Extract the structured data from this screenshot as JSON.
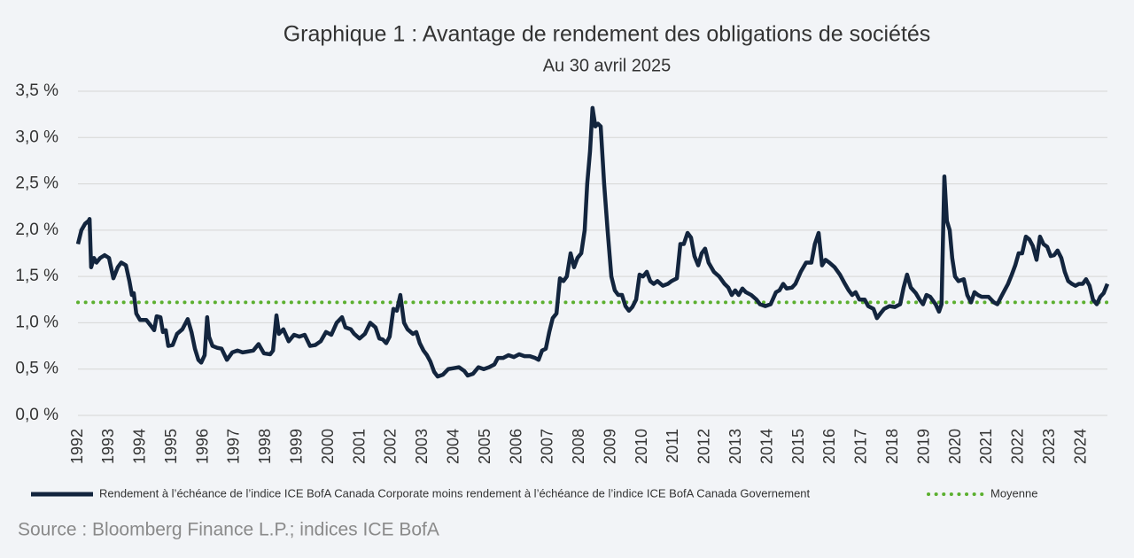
{
  "chart_data": {
    "type": "line",
    "title": "Graphique 1 : Avantage de rendement des obligations de sociétés",
    "subtitle": "Au 30 avril 2025",
    "source": "Source : Bloomberg Finance L.P.; indices ICE BofA",
    "xlim": [
      1992,
      2024.83
    ],
    "xticks": [
      1992,
      1993,
      1994,
      1995,
      1996,
      1997,
      1998,
      1999,
      2000,
      2001,
      2002,
      2003,
      2004,
      2005,
      2006,
      2007,
      2008,
      2009,
      2010,
      2011,
      2012,
      2013,
      2014,
      2015,
      2016,
      2017,
      2018,
      2019,
      2020,
      2021,
      2022,
      2023,
      2024
    ],
    "ylim": [
      0,
      3.5
    ],
    "yticks": [
      {
        "value": 0,
        "label": "0,0 %"
      },
      {
        "value": 0.5,
        "label": "0,5 %"
      },
      {
        "value": 1,
        "label": "1,0 %"
      },
      {
        "value": 1.5,
        "label": "1,5 %"
      },
      {
        "value": 2,
        "label": "2,0 %"
      },
      {
        "value": 2.5,
        "label": "2,5 %"
      },
      {
        "value": 3,
        "label": "3,0 %"
      },
      {
        "value": 3.5,
        "label": "3,5 %"
      }
    ],
    "grid": true,
    "x": [
      1992.0,
      1992.11,
      1992.23,
      1992.34,
      1992.37,
      1992.42,
      1992.51,
      1992.59,
      1992.71,
      1992.85,
      1992.99,
      1993.13,
      1993.27,
      1993.38,
      1993.53,
      1993.64,
      1993.72,
      1993.78,
      1993.86,
      1993.98,
      1994.18,
      1994.32,
      1994.43,
      1994.51,
      1994.63,
      1994.71,
      1994.8,
      1994.88,
      1995.02,
      1995.16,
      1995.33,
      1995.5,
      1995.62,
      1995.73,
      1995.84,
      1995.93,
      1996.04,
      1996.12,
      1996.18,
      1996.29,
      1996.44,
      1996.58,
      1996.75,
      1996.92,
      1997.09,
      1997.25,
      1997.42,
      1997.59,
      1997.76,
      1997.93,
      1998.13,
      1998.22,
      1998.33,
      1998.41,
      1998.55,
      1998.72,
      1998.89,
      1999.06,
      1999.23,
      1999.4,
      1999.57,
      1999.74,
      1999.91,
      2000.08,
      2000.25,
      2000.42,
      2000.53,
      2000.7,
      2000.81,
      2000.98,
      2001.15,
      2001.32,
      2001.49,
      2001.61,
      2001.72,
      2001.83,
      2001.94,
      2002.06,
      2002.17,
      2002.28,
      2002.4,
      2002.51,
      2002.68,
      2002.79,
      2002.9,
      2003.02,
      2003.13,
      2003.24,
      2003.36,
      2003.47,
      2003.64,
      2003.81,
      2003.98,
      2004.15,
      2004.32,
      2004.43,
      2004.6,
      2004.77,
      2004.94,
      2005.11,
      2005.28,
      2005.39,
      2005.56,
      2005.73,
      2005.9,
      2006.07,
      2006.24,
      2006.41,
      2006.58,
      2006.69,
      2006.8,
      2006.92,
      2007.03,
      2007.14,
      2007.26,
      2007.37,
      2007.48,
      2007.59,
      2007.71,
      2007.82,
      2007.93,
      2008.05,
      2008.16,
      2008.24,
      2008.33,
      2008.41,
      2008.5,
      2008.58,
      2008.67,
      2008.78,
      2008.89,
      2009.01,
      2009.12,
      2009.23,
      2009.35,
      2009.46,
      2009.57,
      2009.68,
      2009.8,
      2009.91,
      2010.02,
      2010.14,
      2010.25,
      2010.36,
      2010.48,
      2010.65,
      2010.81,
      2010.93,
      2011.1,
      2011.21,
      2011.32,
      2011.44,
      2011.55,
      2011.66,
      2011.78,
      2011.89,
      2012.0,
      2012.11,
      2012.28,
      2012.45,
      2012.62,
      2012.74,
      2012.85,
      2012.96,
      2013.07,
      2013.19,
      2013.3,
      2013.47,
      2013.64,
      2013.75,
      2013.92,
      2014.09,
      2014.26,
      2014.37,
      2014.49,
      2014.6,
      2014.77,
      2014.88,
      2015.05,
      2015.22,
      2015.39,
      2015.5,
      2015.62,
      2015.73,
      2015.84,
      2015.96,
      2016.13,
      2016.3,
      2016.46,
      2016.58,
      2016.69,
      2016.8,
      2016.92,
      2017.09,
      2017.2,
      2017.37,
      2017.48,
      2017.59,
      2017.71,
      2017.88,
      2018.05,
      2018.22,
      2018.33,
      2018.44,
      2018.56,
      2018.72,
      2018.84,
      2018.95,
      2019.06,
      2019.18,
      2019.35,
      2019.46,
      2019.54,
      2019.63,
      2019.71,
      2019.8,
      2019.88,
      2019.97,
      2020.08,
      2020.25,
      2020.36,
      2020.48,
      2020.59,
      2020.7,
      2020.82,
      2020.93,
      2021.04,
      2021.21,
      2021.32,
      2021.44,
      2021.55,
      2021.66,
      2021.78,
      2021.89,
      2022.0,
      2022.11,
      2022.23,
      2022.34,
      2022.45,
      2022.57,
      2022.68,
      2022.79,
      2022.91,
      2023.02,
      2023.13,
      2023.24,
      2023.36,
      2023.47,
      2023.58,
      2023.7,
      2023.81,
      2023.92,
      2024.04,
      2024.15,
      2024.26,
      2024.37,
      2024.49,
      2024.6,
      2024.71,
      2024.83
    ],
    "series": [
      {
        "name": "Rendement à l’échéance de l’indice ICE BofA Canada Corporate moins rendement à l’échéance de l’indice ICE BofA Canada Governement",
        "color": "#13253e",
        "values": [
          1.85,
          2.0,
          2.07,
          2.1,
          2.12,
          1.6,
          1.7,
          1.65,
          1.7,
          1.73,
          1.7,
          1.48,
          1.6,
          1.65,
          1.62,
          1.45,
          1.3,
          1.32,
          1.1,
          1.03,
          1.03,
          0.97,
          0.92,
          1.07,
          1.06,
          0.9,
          0.92,
          0.75,
          0.76,
          0.88,
          0.93,
          1.04,
          0.9,
          0.72,
          0.6,
          0.57,
          0.65,
          1.06,
          0.85,
          0.75,
          0.73,
          0.72,
          0.6,
          0.68,
          0.7,
          0.68,
          0.69,
          0.7,
          0.77,
          0.67,
          0.66,
          0.7,
          1.08,
          0.88,
          0.93,
          0.8,
          0.87,
          0.85,
          0.87,
          0.75,
          0.76,
          0.8,
          0.9,
          0.87,
          1.0,
          1.06,
          0.95,
          0.93,
          0.88,
          0.83,
          0.88,
          1.0,
          0.95,
          0.83,
          0.82,
          0.78,
          0.85,
          1.15,
          1.13,
          1.3,
          1.0,
          0.93,
          0.88,
          0.9,
          0.78,
          0.7,
          0.65,
          0.58,
          0.47,
          0.42,
          0.44,
          0.5,
          0.51,
          0.52,
          0.48,
          0.43,
          0.45,
          0.52,
          0.5,
          0.52,
          0.55,
          0.62,
          0.62,
          0.65,
          0.63,
          0.66,
          0.64,
          0.64,
          0.62,
          0.6,
          0.7,
          0.72,
          0.9,
          1.05,
          1.1,
          1.48,
          1.45,
          1.5,
          1.75,
          1.6,
          1.7,
          1.75,
          2.0,
          2.5,
          2.85,
          3.32,
          3.12,
          3.15,
          3.12,
          2.5,
          2.0,
          1.5,
          1.35,
          1.3,
          1.3,
          1.18,
          1.13,
          1.17,
          1.25,
          1.52,
          1.5,
          1.55,
          1.45,
          1.42,
          1.45,
          1.4,
          1.42,
          1.45,
          1.48,
          1.85,
          1.85,
          1.97,
          1.92,
          1.72,
          1.62,
          1.75,
          1.8,
          1.65,
          1.55,
          1.5,
          1.42,
          1.38,
          1.3,
          1.35,
          1.3,
          1.37,
          1.33,
          1.3,
          1.25,
          1.2,
          1.18,
          1.2,
          1.33,
          1.35,
          1.42,
          1.37,
          1.38,
          1.42,
          1.55,
          1.65,
          1.65,
          1.85,
          1.97,
          1.62,
          1.68,
          1.65,
          1.6,
          1.52,
          1.42,
          1.35,
          1.3,
          1.33,
          1.25,
          1.25,
          1.18,
          1.15,
          1.05,
          1.1,
          1.15,
          1.18,
          1.17,
          1.2,
          1.38,
          1.52,
          1.38,
          1.32,
          1.25,
          1.2,
          1.3,
          1.28,
          1.2,
          1.12,
          1.2,
          2.58,
          2.1,
          2.0,
          1.7,
          1.5,
          1.45,
          1.47,
          1.3,
          1.22,
          1.33,
          1.3,
          1.28,
          1.28,
          1.28,
          1.22,
          1.2,
          1.28,
          1.35,
          1.42,
          1.52,
          1.62,
          1.75,
          1.75,
          1.93,
          1.9,
          1.83,
          1.68,
          1.93,
          1.85,
          1.82,
          1.72,
          1.73,
          1.78,
          1.7,
          1.55,
          1.45,
          1.42,
          1.4,
          1.42,
          1.42,
          1.47,
          1.4,
          1.25,
          1.2,
          1.28,
          1.32,
          1.42
        ]
      }
    ],
    "reference_line": {
      "name": "Moyenne",
      "value": 1.22,
      "color": "#5cb030"
    }
  }
}
